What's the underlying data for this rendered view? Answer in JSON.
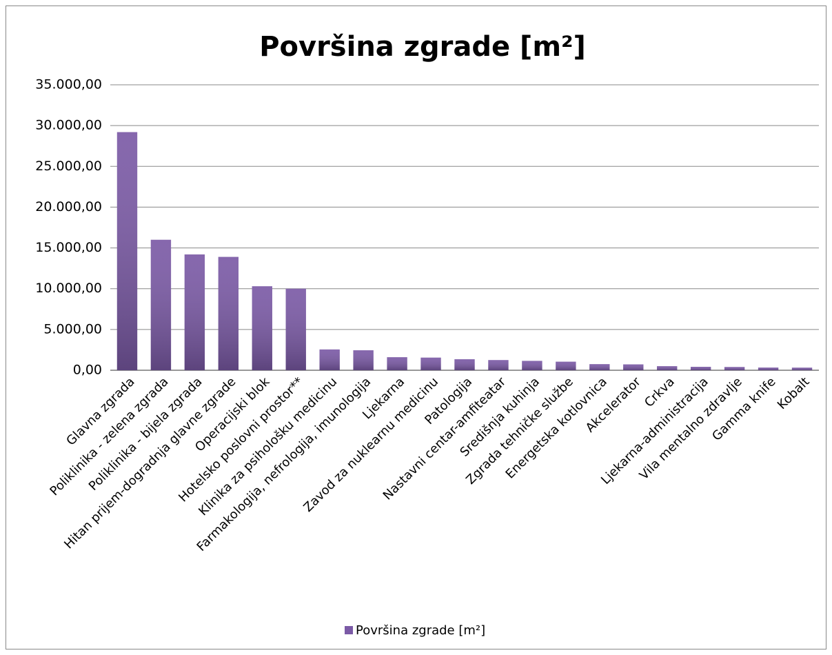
{
  "chart_data": {
    "type": "bar",
    "title": "Površina zgrade [m²]",
    "categories": [
      "Glavna zgrada",
      "Poliklinika - zelena zgrada",
      "Poliklinika - bijela zgrada",
      "Hitan prijem-dogradnja glavne zgrade",
      "Operacijski blok",
      "Hotelsko poslovni prostor**",
      "Klinika za psihološku medicinu",
      "Farmakologija, nefrologija, imunologija",
      "Ljekarna",
      "Zavod za nuklearnu medicinu",
      "Patologija",
      "Nastavni centar-amfiteatar",
      "Središnja kuhinja",
      "Zgrada tehničke službe",
      "Energetska kotlovnica",
      "Akcelerator",
      "Crkva",
      "Ljekarna-administracija",
      "Vila mentalno zdravlje",
      "Gamma knife",
      "Kobalt"
    ],
    "series": [
      {
        "name": "Površina zgrade [m²]",
        "color": "#7b5aa6",
        "values": [
          29200,
          16000,
          14200,
          13900,
          10300,
          10000,
          2550,
          2450,
          1600,
          1550,
          1350,
          1250,
          1150,
          1050,
          750,
          720,
          500,
          420,
          400,
          330,
          320
        ]
      }
    ],
    "ylim": [
      0,
      35000
    ],
    "yticks": [
      {
        "value": 0,
        "label": "0,00"
      },
      {
        "value": 5000,
        "label": "5.000,00"
      },
      {
        "value": 10000,
        "label": "10.000,00"
      },
      {
        "value": 15000,
        "label": "15.000,00"
      },
      {
        "value": 20000,
        "label": "20.000,00"
      },
      {
        "value": 25000,
        "label": "25.000,00"
      },
      {
        "value": 30000,
        "label": "30.000,00"
      },
      {
        "value": 35000,
        "label": "35.000,00"
      }
    ],
    "grid": true,
    "legend": "bottom"
  }
}
